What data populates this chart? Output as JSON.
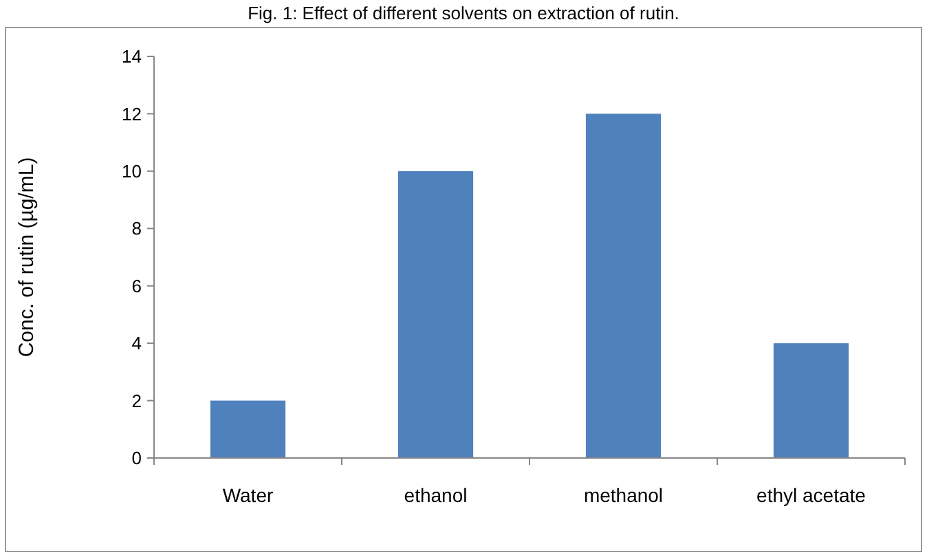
{
  "chart_data": {
    "type": "bar",
    "title": "Fig. 1: Effect of different solvents on extraction of rutin.",
    "ylabel": "Conc. of rutin (µg/mL)",
    "categories": [
      "Water",
      "ethanol",
      "methanol",
      "ethyl acetate"
    ],
    "values": [
      2,
      10,
      12,
      4
    ],
    "color": "#4f81bd",
    "ylim": [
      0,
      14
    ],
    "yticks": [
      0,
      2,
      4,
      6,
      8,
      10,
      12,
      14
    ],
    "grid": false
  }
}
